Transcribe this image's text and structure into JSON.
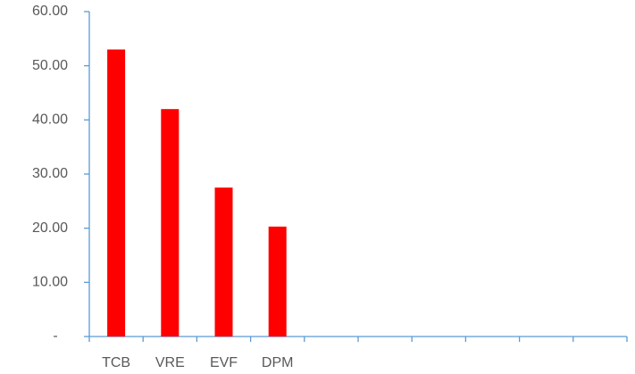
{
  "chart_data": {
    "type": "bar",
    "categories": [
      "TCB",
      "VRE",
      "EVF",
      "DPM",
      null,
      null,
      null,
      null,
      null,
      null
    ],
    "values": [
      53,
      42,
      27.5,
      20.3,
      null,
      null,
      null,
      null,
      null,
      null
    ],
    "color": "#ff0000",
    "ylim": [
      0,
      60
    ],
    "yticks": [
      {
        "value": 0,
        "label": "-"
      },
      {
        "value": 10,
        "label": "10.00"
      },
      {
        "value": 20,
        "label": "20.00"
      },
      {
        "value": 30,
        "label": "30.00"
      },
      {
        "value": 40,
        "label": "40.00"
      },
      {
        "value": 50,
        "label": "50.00"
      },
      {
        "value": 60,
        "label": "60.00"
      }
    ],
    "grid": false
  }
}
